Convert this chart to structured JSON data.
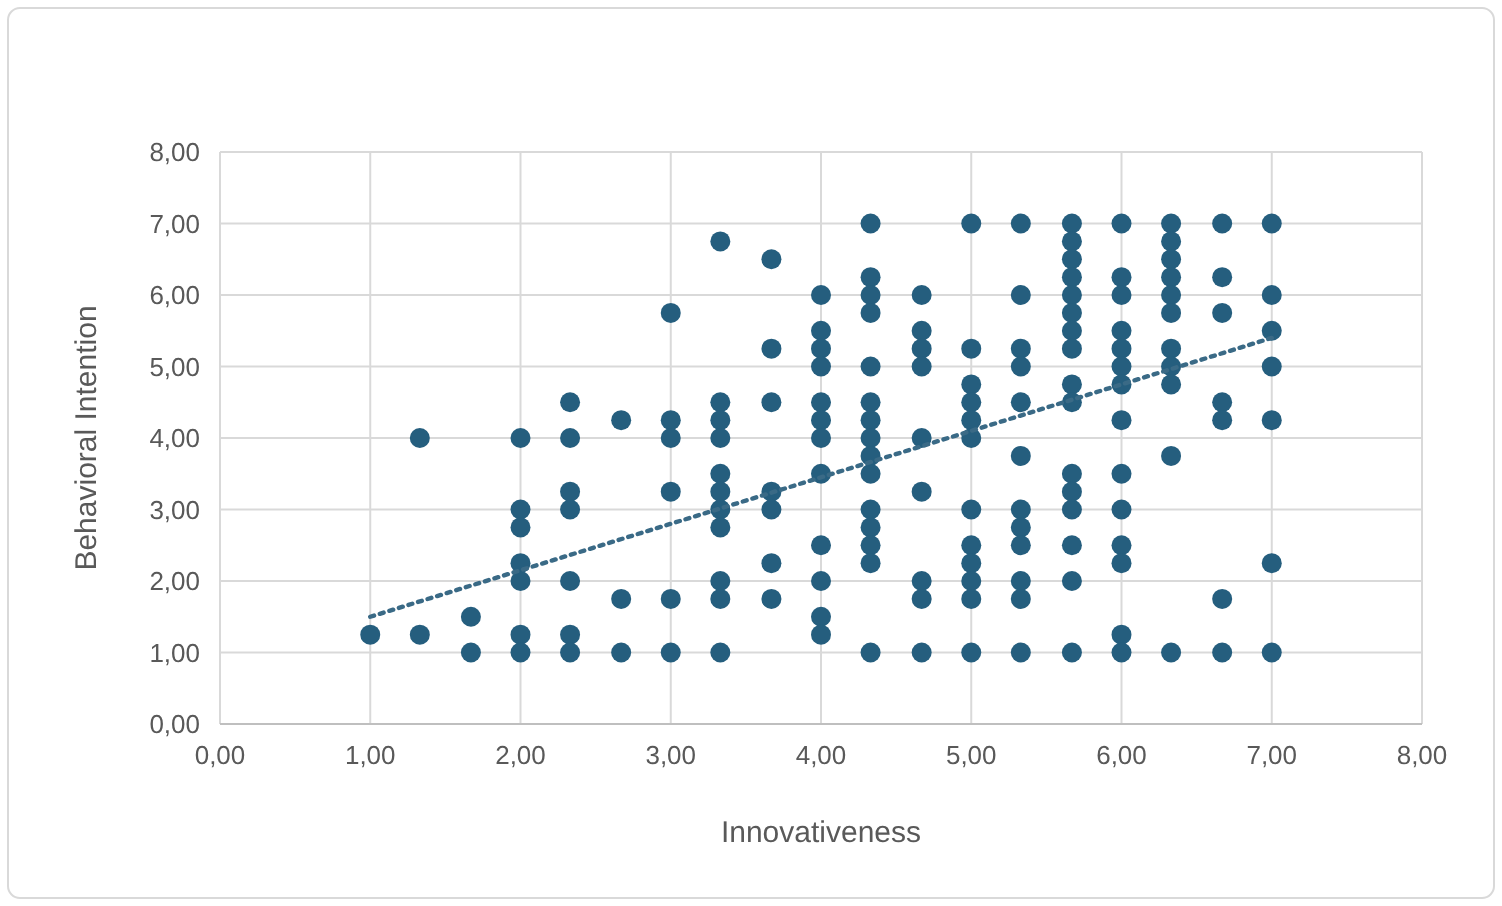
{
  "chart_data": {
    "type": "scatter",
    "xlabel": "Innovativeness",
    "ylabel": "Behavioral Intention",
    "grid": true,
    "marker": "circle",
    "xlim": [
      0,
      8
    ],
    "ylim": [
      0,
      8
    ],
    "xticks": [
      {
        "value": 0,
        "label": "0,00"
      },
      {
        "value": 1,
        "label": "1,00"
      },
      {
        "value": 2,
        "label": "2,00"
      },
      {
        "value": 3,
        "label": "3,00"
      },
      {
        "value": 4,
        "label": "4,00"
      },
      {
        "value": 5,
        "label": "5,00"
      },
      {
        "value": 6,
        "label": "6,00"
      },
      {
        "value": 7,
        "label": "7,00"
      },
      {
        "value": 8,
        "label": "8,00"
      }
    ],
    "yticks": [
      {
        "value": 0,
        "label": "0,00"
      },
      {
        "value": 1,
        "label": "1,00"
      },
      {
        "value": 2,
        "label": "2,00"
      },
      {
        "value": 3,
        "label": "3,00"
      },
      {
        "value": 4,
        "label": "4,00"
      },
      {
        "value": 5,
        "label": "5,00"
      },
      {
        "value": 6,
        "label": "6,00"
      },
      {
        "value": 7,
        "label": "7,00"
      },
      {
        "value": 8,
        "label": "8,00"
      }
    ],
    "series": [
      {
        "color": "#255e7e",
        "x": [
          1,
          1.33,
          1.33,
          1.67,
          1.67,
          2,
          2,
          2,
          2,
          2,
          2,
          2,
          2.33,
          2.33,
          2.33,
          2.33,
          2.33,
          2.33,
          2.33,
          2.67,
          2.67,
          2.67,
          3,
          3,
          3,
          3,
          3,
          3,
          3.33,
          3.33,
          3.33,
          3.33,
          3.33,
          3.33,
          3.33,
          3.33,
          3.33,
          3.33,
          3.33,
          3.67,
          3.67,
          3.67,
          3.67,
          3.67,
          3.67,
          3.67,
          4,
          4,
          4,
          4,
          4,
          4,
          4,
          4,
          4,
          4,
          4,
          4,
          4.33,
          4.33,
          4.33,
          4.33,
          4.33,
          4.33,
          4.33,
          4.33,
          4.33,
          4.33,
          4.33,
          4.33,
          4.33,
          4.33,
          4.33,
          4.67,
          4.67,
          4.67,
          4.67,
          4.67,
          4.67,
          4.67,
          4.67,
          4.67,
          5,
          5,
          5,
          5,
          5,
          5,
          5,
          5,
          5,
          5,
          5,
          5,
          5.33,
          5.33,
          5.33,
          5.33,
          5.33,
          5.33,
          5.33,
          5.33,
          5.33,
          5.33,
          5.33,
          5.33,
          5.67,
          5.67,
          5.67,
          5.67,
          5.67,
          5.67,
          5.67,
          5.67,
          5.67,
          5.67,
          5.67,
          5.67,
          5.67,
          5.67,
          5.67,
          5.67,
          6,
          6,
          6,
          6,
          6,
          6,
          6,
          6,
          6,
          6,
          6,
          6,
          6,
          6,
          6.33,
          6.33,
          6.33,
          6.33,
          6.33,
          6.33,
          6.33,
          6.33,
          6.33,
          6.33,
          6.33,
          6.67,
          6.67,
          6.67,
          6.67,
          6.67,
          6.67,
          6.67,
          7,
          7,
          7,
          7,
          7,
          7,
          7
        ],
        "values": [
          1.25,
          4,
          1.25,
          1.5,
          1,
          4,
          3,
          2.75,
          2.25,
          2,
          1.25,
          1,
          4.5,
          4,
          3.25,
          3,
          2,
          1.25,
          1,
          4.25,
          1.75,
          1,
          5.75,
          4.25,
          4,
          3.25,
          1.75,
          1,
          6.75,
          4.5,
          4.25,
          4,
          3.5,
          3.25,
          3,
          2.75,
          2,
          1.75,
          1,
          6.5,
          5.25,
          4.5,
          3.25,
          3,
          2.25,
          1.75,
          6,
          5.5,
          5.25,
          5,
          4.5,
          4.25,
          4,
          3.5,
          2.5,
          2,
          1.5,
          1.25,
          7,
          6.25,
          6,
          5.75,
          5,
          4.5,
          4.25,
          4,
          3.75,
          3.5,
          3,
          2.75,
          2.5,
          2.25,
          1,
          6,
          5.5,
          5.25,
          5,
          4,
          3.25,
          2,
          1.75,
          1,
          7,
          5.25,
          4.75,
          4.5,
          4.25,
          4,
          3,
          2.5,
          2.25,
          2,
          1.75,
          1,
          7,
          6,
          5.25,
          5,
          4.5,
          3.75,
          3,
          2.75,
          2.5,
          2,
          1.75,
          1,
          7,
          6.75,
          6.5,
          6.25,
          6,
          5.75,
          5.5,
          5.25,
          4.75,
          4.5,
          3.5,
          3.25,
          3,
          2.5,
          2,
          1,
          7,
          6.25,
          6,
          5.5,
          5.25,
          5,
          4.75,
          4.25,
          3.5,
          3,
          2.5,
          2.25,
          1.25,
          1,
          7,
          6.75,
          6.5,
          6.25,
          6,
          5.75,
          5.25,
          5,
          4.75,
          3.75,
          1,
          7,
          6.25,
          5.75,
          4.5,
          4.25,
          1.75,
          1,
          7,
          6,
          5.5,
          5,
          4.25,
          2.25,
          1
        ]
      },
      {
        "type": "line",
        "color": "#3a6a86",
        "line_style": "dotted",
        "marker": "none",
        "x": [
          1,
          7
        ],
        "values": [
          1.5,
          5.4
        ]
      }
    ]
  }
}
